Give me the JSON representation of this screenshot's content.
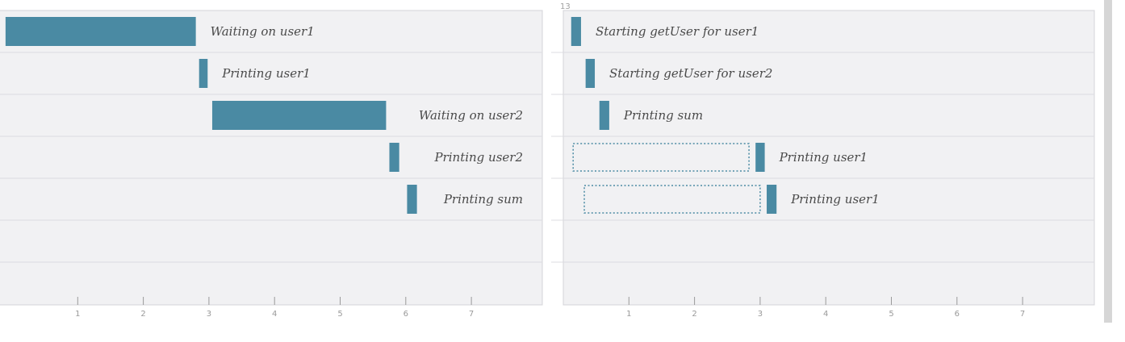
{
  "chart_data": [
    {
      "type": "timeline",
      "title": "",
      "xlabel": "",
      "ylabel": "",
      "xlim": [
        0,
        7.9
      ],
      "x_ticks": [
        1,
        2,
        3,
        4,
        5,
        6,
        7
      ],
      "rows": 7,
      "label_placement": [
        "right",
        "right",
        "left",
        "left",
        "left"
      ],
      "tasks": [
        {
          "label": "Waiting on user1",
          "row": 0,
          "start": -0.1,
          "end": 2.8
        },
        {
          "label": "Printing user1",
          "row": 1,
          "start": 2.85,
          "end": 2.98
        },
        {
          "label": "Waiting on user2",
          "row": 2,
          "start": 3.05,
          "end": 5.7
        },
        {
          "label": "Printing user2",
          "row": 3,
          "start": 5.75,
          "end": 5.9
        },
        {
          "label": "Printing sum",
          "row": 4,
          "start": 6.02,
          "end": 6.17
        }
      ]
    },
    {
      "type": "timeline",
      "title": "",
      "xlabel": "",
      "ylabel": "",
      "corner_label": "13",
      "xlim": [
        0,
        8.1
      ],
      "x_ticks": [
        1,
        2,
        3,
        4,
        5,
        6,
        7
      ],
      "rows": 7,
      "tasks": [
        {
          "label": "Starting getUser for user1",
          "row": 0,
          "start": 0.12,
          "end": 0.27
        },
        {
          "label": "Starting getUser for user2",
          "row": 1,
          "start": 0.34,
          "end": 0.48
        },
        {
          "label": "Printing sum",
          "row": 2,
          "start": 0.55,
          "end": 0.7
        },
        {
          "label": "Printing user1",
          "row": 3,
          "start": 2.93,
          "end": 3.07,
          "wait_start": 0.15,
          "wait_end": 2.83
        },
        {
          "label": "Printing user1",
          "row": 4,
          "start": 3.1,
          "end": 3.25,
          "wait_start": 0.32,
          "wait_end": 3.0
        }
      ]
    }
  ]
}
